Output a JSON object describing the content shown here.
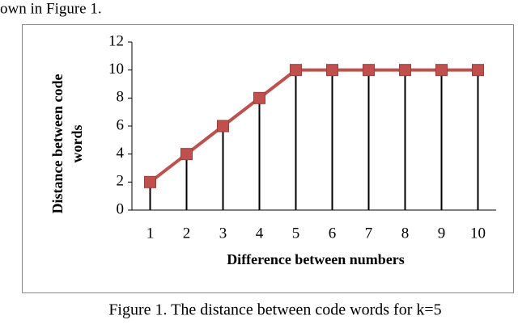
{
  "page_text": "own in Figure 1.",
  "caption": "Figure 1. The distance between code words for k=5",
  "chart_data": {
    "type": "line",
    "x_label": "Difference between numbers",
    "y_label": [
      "Distance between  code",
      "words"
    ],
    "categories": [
      "1",
      "2",
      "3",
      "4",
      "5",
      "6",
      "7",
      "8",
      "9",
      "10"
    ],
    "values": [
      2,
      4,
      6,
      8,
      10,
      10,
      10,
      10,
      10,
      10
    ],
    "color": "#c0504d",
    "drop_lines": true,
    "ylim": [
      0,
      12
    ],
    "yticks": [
      0,
      2,
      4,
      6,
      8,
      10,
      12
    ]
  }
}
